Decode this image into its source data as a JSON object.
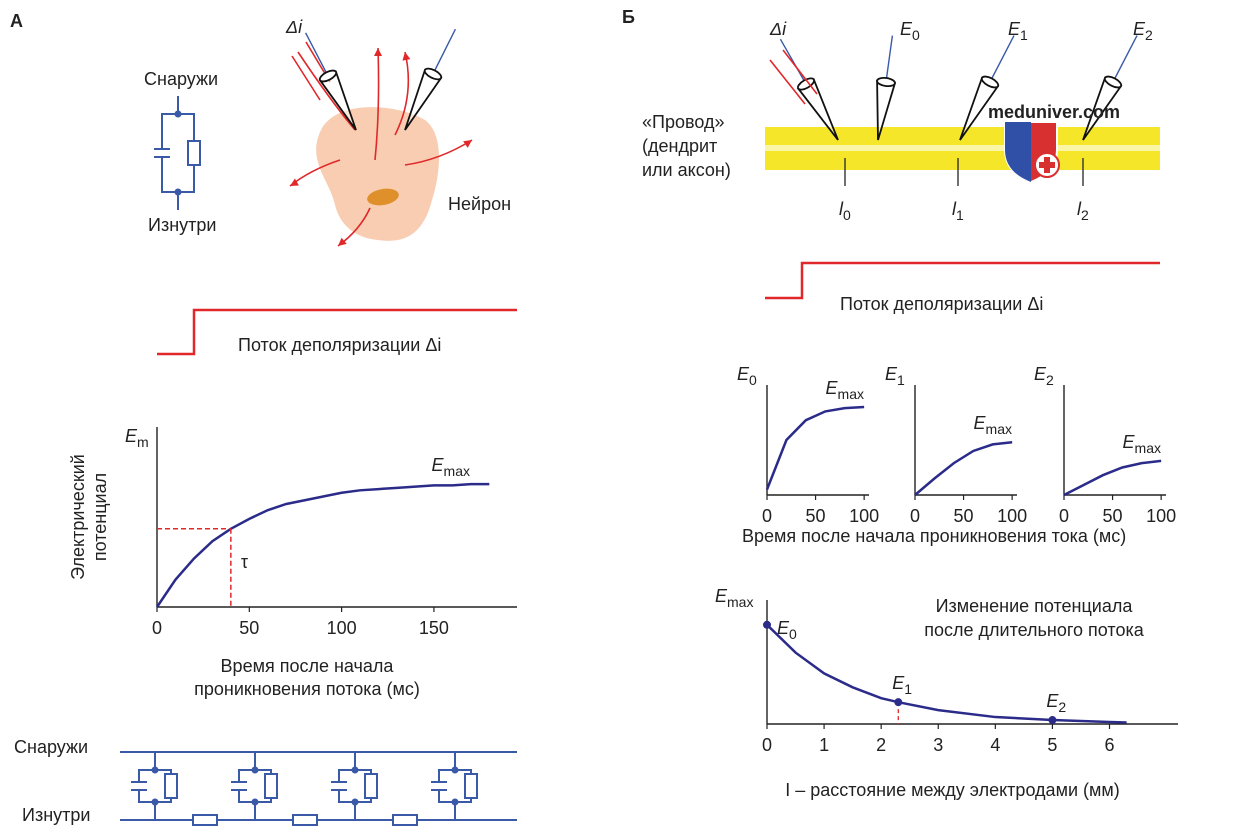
{
  "panel_a": {
    "label": "А",
    "outside": "Снаружи",
    "inside": "Изнутри",
    "neuron": "Нейрон",
    "current": "Δi",
    "step_label": "Поток деполяризации Δi"
  },
  "cable": {
    "outside": "Снаружи",
    "inside": "Изнутри"
  },
  "panel_b": {
    "label": "Б",
    "current": "Δi",
    "electrodes": [
      {
        "base": "E",
        "sub": "0"
      },
      {
        "base": "E",
        "sub": "1"
      },
      {
        "base": "E",
        "sub": "2"
      }
    ],
    "wire": [
      "«Провод»",
      "(дендрит",
      "или аксон)"
    ],
    "positions": [
      {
        "base": "l",
        "sub": "0"
      },
      {
        "base": "l",
        "sub": "1"
      },
      {
        "base": "l",
        "sub": "2"
      }
    ],
    "watermark": "meduniver.com",
    "step_label": "Поток деполяризации Δi",
    "small_x_label": "Время после начала проникновения тока (мс)"
  },
  "chart_data": [
    {
      "type": "line",
      "color": "#2b2b8a",
      "y_label": {
        "base": "E",
        "sub": "m"
      },
      "y_axis_title": [
        "Электрический",
        "потенциал"
      ],
      "x_label": [
        "Время после начала",
        "проникновения потока (мс)"
      ],
      "end_label": {
        "base": "E",
        "sub": "max"
      },
      "x": [
        0,
        10,
        20,
        30,
        40,
        50,
        60,
        70,
        80,
        90,
        100,
        110,
        120,
        130,
        140,
        150,
        160,
        170,
        180
      ],
      "values": [
        0,
        0.22,
        0.39,
        0.53,
        0.63,
        0.71,
        0.78,
        0.83,
        0.86,
        0.89,
        0.92,
        0.94,
        0.95,
        0.96,
        0.97,
        0.98,
        0.98,
        0.99,
        0.99
      ],
      "xlim": [
        0,
        195
      ],
      "xticks": [
        0,
        50,
        100,
        150
      ],
      "ylim": [
        0,
        1.45
      ],
      "tau": {
        "label": "τ",
        "x": 40,
        "y": 0.63
      }
    },
    {
      "type": "line",
      "color": "#2b2b8a",
      "y_label": {
        "base": "E",
        "sub": "0"
      },
      "end_label": {
        "base": "E",
        "sub": "max"
      },
      "x": [
        0,
        20,
        40,
        60,
        80,
        100
      ],
      "values": [
        0.05,
        0.5,
        0.68,
        0.76,
        0.79,
        0.8
      ],
      "xlim": [
        0,
        105
      ],
      "xticks": [
        0,
        50,
        100
      ],
      "ylim": [
        0,
        1
      ]
    },
    {
      "type": "line",
      "color": "#2b2b8a",
      "y_label": {
        "base": "E",
        "sub": "1"
      },
      "end_label": {
        "base": "E",
        "sub": "max"
      },
      "x": [
        0,
        20,
        40,
        60,
        80,
        100
      ],
      "values": [
        0,
        0.15,
        0.29,
        0.4,
        0.46,
        0.48
      ],
      "xlim": [
        0,
        105
      ],
      "xticks": [
        0,
        50,
        100
      ],
      "ylim": [
        0,
        1
      ]
    },
    {
      "type": "line",
      "color": "#2b2b8a",
      "y_label": {
        "base": "E",
        "sub": "2"
      },
      "end_label": {
        "base": "E",
        "sub": "max"
      },
      "x": [
        0,
        20,
        40,
        60,
        80,
        100
      ],
      "values": [
        0,
        0.09,
        0.18,
        0.25,
        0.29,
        0.31
      ],
      "xlim": [
        0,
        105
      ],
      "xticks": [
        0,
        50,
        100
      ],
      "ylim": [
        0,
        1
      ]
    },
    {
      "type": "line",
      "color": "#2b2b8a",
      "title": [
        "Изменение потенциала",
        "после длительного потока"
      ],
      "y_label": {
        "base": "E",
        "sub": "max"
      },
      "x_label": "I – расстояние между электродами (мм)",
      "x": [
        0,
        0.5,
        1,
        1.5,
        2,
        2.3,
        3,
        4,
        5,
        6,
        6.3
      ],
      "values": [
        1,
        0.72,
        0.51,
        0.37,
        0.26,
        0.22,
        0.14,
        0.07,
        0.04,
        0.02,
        0.015
      ],
      "points": [
        {
          "label": {
            "base": "E",
            "sub": "0"
          },
          "x": 0,
          "y": 1
        },
        {
          "label": {
            "base": "E",
            "sub": "1"
          },
          "x": 2.3,
          "y": 0.22
        },
        {
          "label": {
            "base": "E",
            "sub": "2"
          },
          "x": 5,
          "y": 0.04
        }
      ],
      "xlim": [
        0,
        7.2
      ],
      "xticks": [
        0,
        1,
        2,
        3,
        4,
        5,
        6
      ],
      "ylim": [
        0,
        1.25
      ]
    }
  ]
}
